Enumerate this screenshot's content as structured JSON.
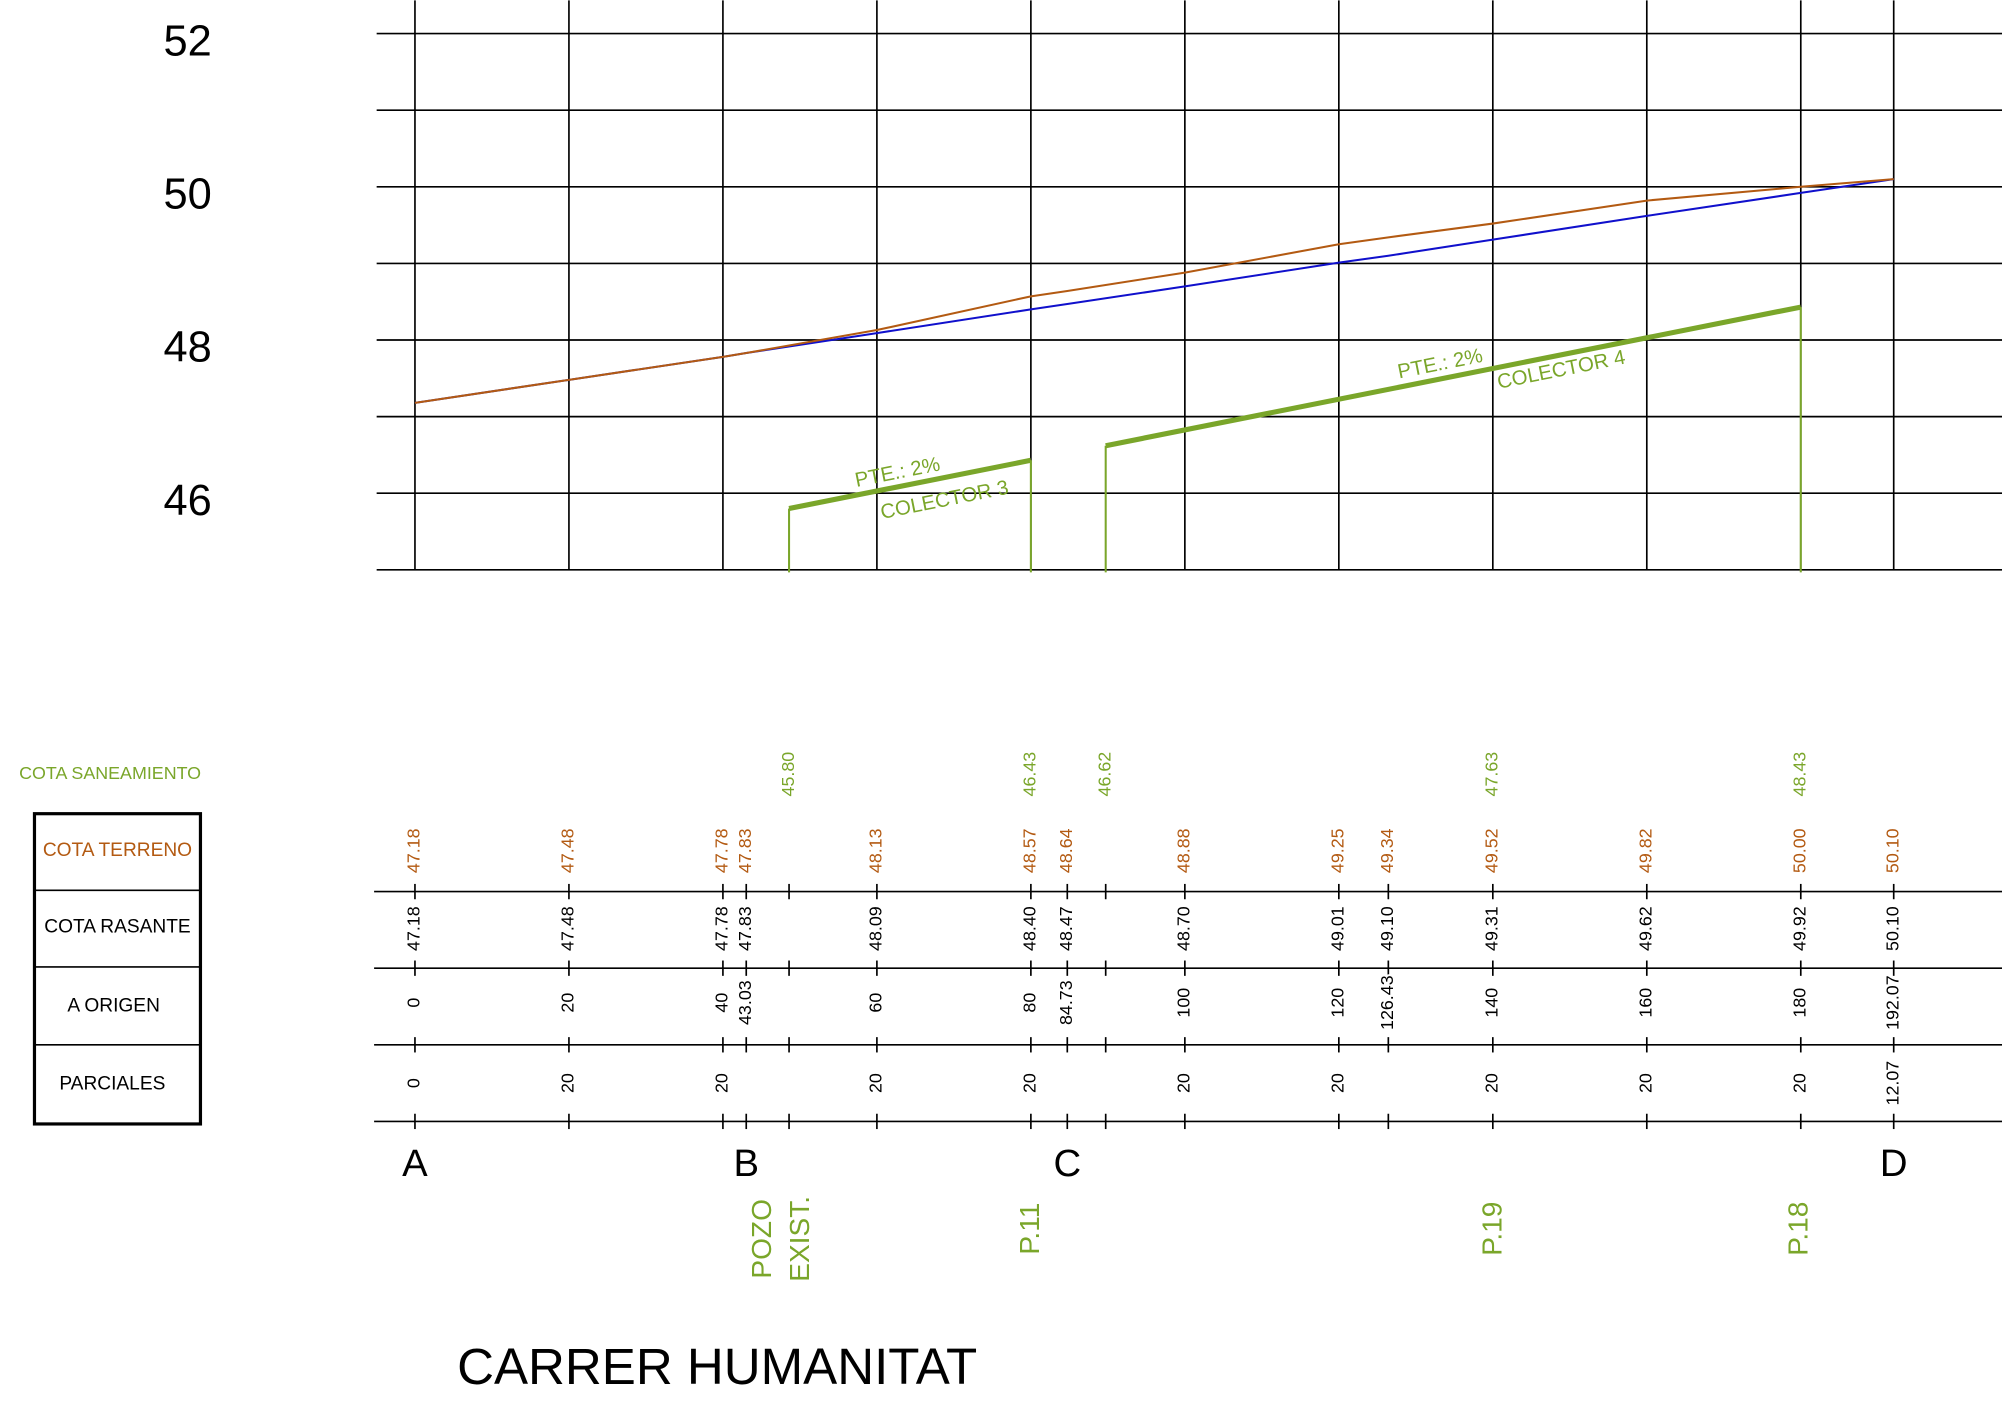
{
  "y_axis_labels": [
    "52",
    "50",
    "48",
    "46"
  ],
  "legend": {
    "sewer": "COTA SANEAMIENTO",
    "rows": [
      "COTA TERRENO",
      "COTA RASANTE",
      "A ORIGEN",
      "PARCIALES"
    ]
  },
  "columns": [
    {
      "terreno": "47.18",
      "rasante": "47.18",
      "origen": "0",
      "parciales": "0"
    },
    {
      "terreno": "47.48",
      "rasante": "47.48",
      "origen": "20",
      "parciales": "20"
    },
    {
      "terreno": "47.78",
      "rasante": "47.78",
      "origen": "40",
      "parciales": "20"
    },
    {
      "terreno": "47.83",
      "rasante": "47.83",
      "origen": "43.03"
    },
    {
      "saneamiento": "45.80"
    },
    {
      "terreno": "48.13",
      "rasante": "48.09",
      "origen": "60",
      "parciales": "20"
    },
    {
      "saneamiento": "46.43",
      "terreno": "48.57",
      "rasante": "48.40",
      "origen": "80",
      "parciales": "20"
    },
    {
      "terreno": "48.64",
      "rasante": "48.47",
      "origen": "84.73"
    },
    {
      "saneamiento": "46.62"
    },
    {
      "terreno": "48.88",
      "rasante": "48.70",
      "origen": "100",
      "parciales": "20"
    },
    {
      "terreno": "49.25",
      "rasante": "49.01",
      "origen": "120",
      "parciales": "20"
    },
    {
      "terreno": "49.34",
      "rasante": "49.10",
      "origen": "126.43"
    },
    {
      "saneamiento": "47.63",
      "terreno": "49.52",
      "rasante": "49.31",
      "origen": "140",
      "parciales": "20"
    },
    {
      "terreno": "49.82",
      "rasante": "49.62",
      "origen": "160",
      "parciales": "20"
    },
    {
      "saneamiento": "48.43",
      "terreno": "50.00",
      "rasante": "49.92",
      "origen": "180",
      "parciales": "20"
    },
    {
      "terreno": "50.10",
      "rasante": "50.10",
      "origen": "192.07",
      "parciales": "12.07"
    }
  ],
  "points": [
    "A",
    "B",
    "C",
    "D"
  ],
  "wells": [
    "POZO",
    "EXIST.",
    "P.11",
    "P.19",
    "P.18"
  ],
  "collectors": [
    {
      "slope": "PTE.: 2%",
      "name": "COLECTOR  3"
    },
    {
      "slope": "PTE.: 2%",
      "name": "COLECTOR  4"
    }
  ],
  "title": "CARRER  HUMANITAT"
}
